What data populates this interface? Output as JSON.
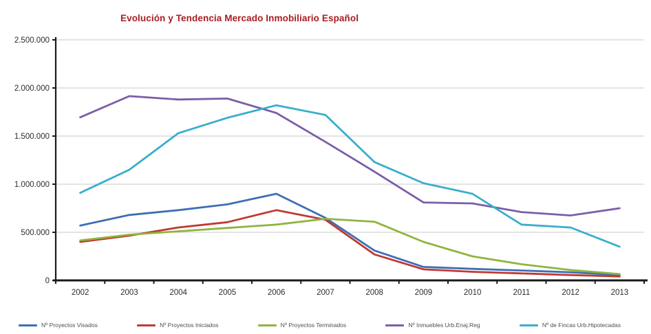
{
  "title": {
    "text": "Evolución y Tendencia Mercado Inmobiliario Español",
    "color": "#A81D22"
  },
  "colors": {
    "axis": "#1a1a1a",
    "grid": "#d4d4d4",
    "tick_text": "#2b2b2b",
    "legend_text": "#4d4d4d",
    "background": "#ffffff"
  },
  "chart_data": {
    "type": "line",
    "title": "Evolución y Tendencia Mercado Inmobiliario Español",
    "xlabel": "",
    "ylabel": "",
    "grid": true,
    "legend_position": "bottom",
    "x": [
      2002,
      2003,
      2004,
      2005,
      2006,
      2007,
      2008,
      2009,
      2010,
      2011,
      2012,
      2013
    ],
    "ylim": [
      0,
      2500000
    ],
    "ytick_step": 500000,
    "ytick_labels": [
      "0",
      "500.000",
      "1.000.000",
      "1.500.000",
      "2.000.000",
      "2.500.000"
    ],
    "series": [
      {
        "name": "Nº Proyectos Visados",
        "color": "#3D6EB5",
        "values": [
          570000,
          680000,
          730000,
          790000,
          900000,
          650000,
          310000,
          140000,
          120000,
          103000,
          84000,
          56000
        ]
      },
      {
        "name": "Nº Proyectos Iniciados",
        "color": "#BF3A32",
        "values": [
          400000,
          465000,
          550000,
          605000,
          730000,
          630000,
          270000,
          115000,
          89000,
          73000,
          56000,
          41000
        ]
      },
      {
        "name": "Nº Proyectos Terminados",
        "color": "#8FB43E",
        "values": [
          415000,
          475000,
          510000,
          545000,
          580000,
          640000,
          610000,
          400000,
          250000,
          168000,
          108000,
          66000
        ]
      },
      {
        "name": "Nº Inmuebles Urb.Enaj.Reg",
        "color": "#7A5DA8",
        "values": [
          1695000,
          1915000,
          1880000,
          1890000,
          1740000,
          1440000,
          1130000,
          810000,
          800000,
          710000,
          675000,
          750000
        ]
      },
      {
        "name": "Nº de Fincas Urb.Hipotecadas",
        "color": "#38AECC",
        "values": [
          910000,
          1150000,
          1530000,
          1690000,
          1820000,
          1720000,
          1230000,
          1010000,
          900000,
          580000,
          550000,
          350000
        ]
      }
    ]
  }
}
